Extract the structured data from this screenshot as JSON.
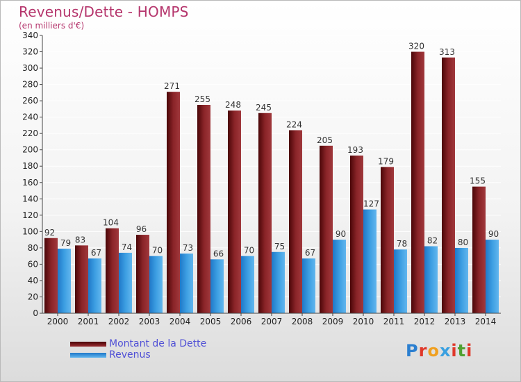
{
  "header": {
    "title": "Revenus/Dette - HOMPS",
    "subtitle": "(en milliers d'€)"
  },
  "chart_data": {
    "type": "bar",
    "categories": [
      "2000",
      "2001",
      "2002",
      "2003",
      "2004",
      "2005",
      "2006",
      "2007",
      "2008",
      "2009",
      "2010",
      "2011",
      "2012",
      "2013",
      "2014"
    ],
    "series": [
      {
        "name": "Montant de la Dette",
        "color": "#7a1a1e",
        "values": [
          92,
          83,
          104,
          96,
          271,
          255,
          248,
          245,
          224,
          205,
          193,
          179,
          320,
          313,
          155
        ]
      },
      {
        "name": "Revenus",
        "color": "#3a9de0",
        "values": [
          79,
          67,
          74,
          70,
          73,
          66,
          70,
          75,
          67,
          90,
          127,
          78,
          82,
          80,
          90
        ]
      }
    ],
    "ylim": [
      0,
      340
    ],
    "yticks": [
      0,
      20,
      40,
      60,
      80,
      100,
      120,
      140,
      160,
      180,
      200,
      220,
      240,
      260,
      280,
      300,
      320,
      340
    ],
    "grid": true,
    "legend_position": "bottom-left"
  },
  "legend": {
    "debt_label": "Montant de la Dette",
    "revenue_label": "Revenus"
  },
  "logo": {
    "letters": [
      "P",
      "r",
      "o",
      "x",
      "i",
      "t",
      "i"
    ],
    "colors": [
      "#2b7fd0",
      "#e0382a",
      "#f0a020",
      "#3aa0e0",
      "#e0382a",
      "#50a030",
      "#e0382a"
    ]
  }
}
